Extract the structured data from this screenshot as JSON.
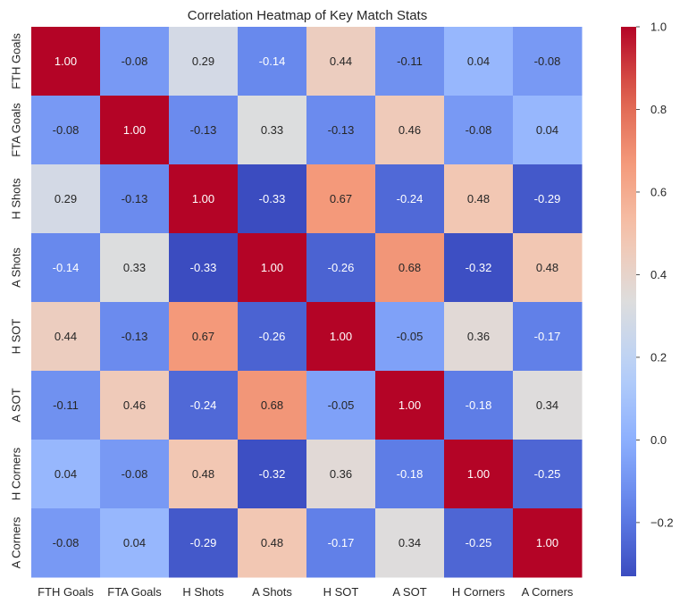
{
  "chart_data": {
    "type": "heatmap",
    "title": "Correlation Heatmap of Key Match Stats",
    "xlabel": "",
    "ylabel": "",
    "labels": [
      "FTH Goals",
      "FTA Goals",
      "H Shots",
      "A Shots",
      "H SOT",
      "A SOT",
      "H Corners",
      "A Corners"
    ],
    "matrix": [
      [
        1.0,
        -0.08,
        0.29,
        -0.14,
        0.44,
        -0.11,
        0.04,
        -0.08
      ],
      [
        -0.08,
        1.0,
        -0.13,
        0.33,
        -0.13,
        0.46,
        -0.08,
        0.04
      ],
      [
        0.29,
        -0.13,
        1.0,
        -0.33,
        0.67,
        -0.24,
        0.48,
        -0.29
      ],
      [
        -0.14,
        0.33,
        -0.33,
        1.0,
        -0.26,
        0.68,
        -0.32,
        0.48
      ],
      [
        0.44,
        -0.13,
        0.67,
        -0.26,
        1.0,
        -0.05,
        0.36,
        -0.17
      ],
      [
        -0.11,
        0.46,
        -0.24,
        0.68,
        -0.05,
        1.0,
        -0.18,
        0.34
      ],
      [
        0.04,
        -0.08,
        0.48,
        -0.32,
        0.36,
        -0.18,
        1.0,
        -0.25
      ],
      [
        -0.08,
        0.04,
        -0.29,
        0.48,
        -0.17,
        0.34,
        -0.25,
        1.0
      ]
    ],
    "value_format": "0.00",
    "colormap": "coolwarm",
    "color_range": [
      -0.33,
      1.0
    ],
    "colorbar_ticks": [
      -0.2,
      0.0,
      0.2,
      0.4,
      0.6,
      0.8,
      1.0
    ],
    "colorbar_tick_labels": [
      "−0.2",
      "0.0",
      "0.2",
      "0.4",
      "0.6",
      "0.8",
      "1.0"
    ],
    "grid": false,
    "colorbar_position": "right"
  }
}
